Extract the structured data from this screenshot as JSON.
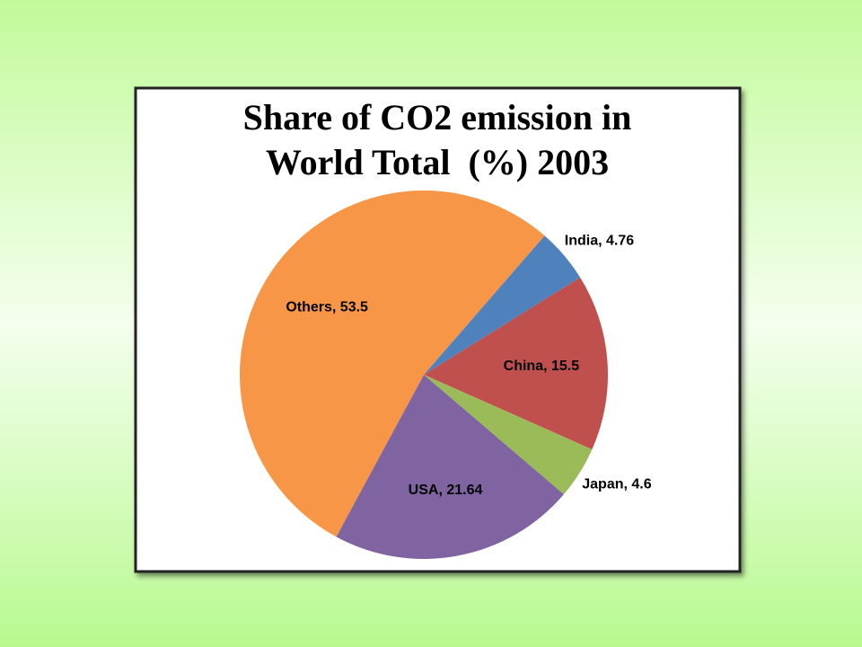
{
  "chart_data": {
    "type": "pie",
    "title": [
      "Share of CO2 emission in",
      "World Total  (%) 2003"
    ],
    "categories": [
      "India",
      "China",
      "Japan",
      "USA",
      "Others"
    ],
    "values": [
      4.76,
      15.5,
      4.6,
      21.64,
      53.5
    ],
    "value_labels": [
      "India, 4.76",
      "China, 15.5",
      "Japan, 4.6",
      "USA, 21.64",
      "Others, 53.5"
    ],
    "colors": [
      "#4f81bd",
      "#c0504d",
      "#9bbb59",
      "#8064a2",
      "#f79646"
    ]
  }
}
